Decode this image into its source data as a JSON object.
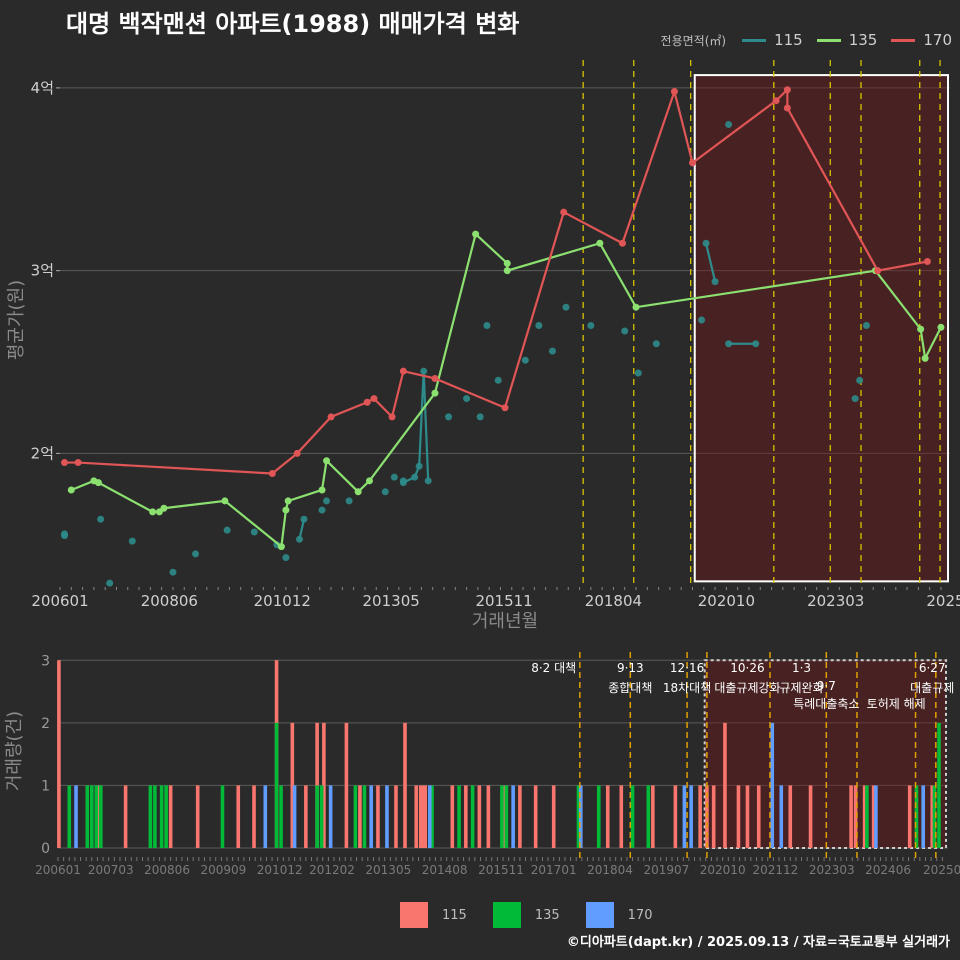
{
  "title": "대명 백작맨션 아파트(1988) 매매가격 변화",
  "legend": {
    "title": "전용면적(㎡)",
    "items": [
      {
        "label": "115",
        "color": "#2e8b8b"
      },
      {
        "label": "135",
        "color": "#8be070"
      },
      {
        "label": "170",
        "color": "#e05555"
      }
    ]
  },
  "bar_legend": [
    {
      "label": "115",
      "color": "#f8766d"
    },
    {
      "label": "135",
      "color": "#00ba38"
    },
    {
      "label": "170",
      "color": "#619cff"
    }
  ],
  "credit": "©디아파트(dapt.kr) / 2025.09.13 / 자료=국토교통부 실거래가",
  "chart_data": [
    {
      "type": "line",
      "title": "대명 백작맨션 아파트(1988) 매매가격 변화",
      "xlabel": "거래년월",
      "ylabel": "평균가(원)",
      "x_tick_labels": [
        "200601",
        "200806",
        "201012",
        "201305",
        "201511",
        "201804",
        "202010",
        "202303",
        "2025"
      ],
      "y_tick_labels": [
        "2억",
        "3억",
        "4억"
      ],
      "y_ticks": [
        2,
        3,
        4
      ],
      "xlim": [
        2006.0,
        2025.7
      ],
      "ylim": [
        1.28,
        4.18
      ],
      "y_unit": "억",
      "series": [
        {
          "name": "115",
          "color": "#2e8b8b",
          "points": [
            [
              2006.1,
              1.56
            ],
            [
              2006.1,
              1.55
            ],
            [
              2006.9,
              1.64
            ],
            [
              2007.1,
              1.29
            ],
            [
              2007.6,
              1.52
            ],
            [
              2008.5,
              1.35
            ],
            [
              2009.0,
              1.45
            ],
            [
              2009.7,
              1.58
            ],
            [
              2010.3,
              1.57
            ],
            [
              2010.8,
              1.5
            ],
            [
              2011.0,
              1.43
            ],
            [
              2011.3,
              1.53
            ],
            [
              2011.4,
              1.64
            ],
            [
              2011.8,
              1.69
            ],
            [
              2011.9,
              1.74
            ],
            [
              2012.4,
              1.74
            ],
            [
              2013.2,
              1.79
            ],
            [
              2013.4,
              1.87
            ],
            [
              2013.6,
              1.85
            ],
            [
              2013.6,
              1.84
            ],
            [
              2013.85,
              1.87
            ],
            [
              2013.95,
              1.93
            ],
            [
              2014.05,
              2.45
            ],
            [
              2014.15,
              1.85
            ],
            [
              2014.6,
              2.2
            ],
            [
              2015.0,
              2.3
            ],
            [
              2015.3,
              2.2
            ],
            [
              2015.45,
              2.7
            ],
            [
              2015.7,
              2.4
            ],
            [
              2016.3,
              2.51
            ],
            [
              2016.6,
              2.7
            ],
            [
              2016.9,
              2.56
            ],
            [
              2017.2,
              2.8
            ],
            [
              2017.75,
              2.7
            ],
            [
              2018.5,
              2.67
            ],
            [
              2018.8,
              2.44
            ],
            [
              2019.2,
              2.6
            ],
            [
              2020.2,
              2.73
            ],
            [
              2020.3,
              3.15
            ],
            [
              2020.5,
              2.94
            ],
            [
              2020.8,
              3.8
            ],
            [
              2020.8,
              2.6
            ],
            [
              2021.4,
              2.6
            ],
            [
              2023.6,
              2.3
            ],
            [
              2023.7,
              2.4
            ],
            [
              2023.85,
              2.7
            ]
          ]
        },
        {
          "name": "135",
          "color": "#8be070",
          "points": [
            [
              2006.25,
              1.8
            ],
            [
              2006.75,
              1.85
            ],
            [
              2006.85,
              1.84
            ],
            [
              2008.05,
              1.68
            ],
            [
              2008.2,
              1.68
            ],
            [
              2008.3,
              1.7
            ],
            [
              2009.65,
              1.74
            ],
            [
              2010.9,
              1.49
            ],
            [
              2011.0,
              1.69
            ],
            [
              2011.05,
              1.74
            ],
            [
              2011.8,
              1.8
            ],
            [
              2011.9,
              1.96
            ],
            [
              2012.6,
              1.79
            ],
            [
              2012.85,
              1.85
            ],
            [
              2014.3,
              2.33
            ],
            [
              2015.2,
              3.2
            ],
            [
              2015.9,
              3.04
            ],
            [
              2015.9,
              3.0
            ],
            [
              2017.95,
              3.15
            ],
            [
              2018.75,
              2.8
            ],
            [
              2024.05,
              3.0
            ],
            [
              2025.05,
              2.68
            ],
            [
              2025.15,
              2.52
            ],
            [
              2025.5,
              2.69
            ]
          ]
        },
        {
          "name": "170",
          "color": "#e05555",
          "points": [
            [
              2006.1,
              1.95
            ],
            [
              2006.4,
              1.95
            ],
            [
              2010.7,
              1.89
            ],
            [
              2011.25,
              2.0
            ],
            [
              2012.0,
              2.2
            ],
            [
              2012.8,
              2.28
            ],
            [
              2012.95,
              2.3
            ],
            [
              2013.35,
              2.2
            ],
            [
              2013.6,
              2.45
            ],
            [
              2014.3,
              2.41
            ],
            [
              2015.85,
              2.25
            ],
            [
              2017.15,
              3.32
            ],
            [
              2018.45,
              3.15
            ],
            [
              2019.6,
              3.98
            ],
            [
              2020.0,
              3.59
            ],
            [
              2021.85,
              3.93
            ],
            [
              2022.1,
              3.99
            ],
            [
              2022.1,
              3.89
            ],
            [
              2024.1,
              3.0
            ],
            [
              2025.2,
              3.05
            ]
          ]
        }
      ],
      "policy_lines": [
        2017.58,
        2018.7,
        2019.96,
        2021.8,
        2023.05,
        2023.73,
        2025.03,
        2025.48
      ],
      "highlight_range": [
        2020.05,
        2025.7
      ]
    },
    {
      "type": "bar",
      "ylabel": "거래량(건)",
      "x_tick_labels": [
        "200601",
        "200703",
        "200806",
        "200909",
        "201012",
        "201202",
        "201305",
        "201408",
        "201511",
        "201701",
        "201804",
        "201907",
        "202010",
        "202112",
        "202303",
        "202406",
        "20250"
      ],
      "y_tick_labels": [
        "0",
        "1",
        "2",
        "3"
      ],
      "y_ticks": [
        0,
        1,
        2,
        3
      ],
      "xlim": [
        2006.0,
        2025.75
      ],
      "ylim": [
        0,
        3.1
      ],
      "series": [
        {
          "name": "115",
          "color": "#f8766d",
          "points": [
            [
              2006.02,
              3
            ],
            [
              2006.9,
              1
            ],
            [
              2007.5,
              1
            ],
            [
              2008.5,
              1
            ],
            [
              2009.1,
              1
            ],
            [
              2010.0,
              1
            ],
            [
              2010.35,
              1
            ],
            [
              2010.85,
              3
            ],
            [
              2011.2,
              2
            ],
            [
              2011.5,
              1
            ],
            [
              2011.75,
              2
            ],
            [
              2011.9,
              2
            ],
            [
              2012.4,
              2
            ],
            [
              2012.7,
              1
            ],
            [
              2013.1,
              1
            ],
            [
              2013.5,
              1
            ],
            [
              2013.7,
              2
            ],
            [
              2013.95,
              1
            ],
            [
              2014.05,
              1
            ],
            [
              2014.1,
              1
            ],
            [
              2014.15,
              1
            ],
            [
              2014.75,
              1
            ],
            [
              2015.05,
              1
            ],
            [
              2015.35,
              1
            ],
            [
              2015.55,
              1
            ],
            [
              2015.9,
              1
            ],
            [
              2016.25,
              1
            ],
            [
              2016.6,
              1
            ],
            [
              2017.0,
              1
            ],
            [
              2017.6,
              1
            ],
            [
              2018.2,
              1
            ],
            [
              2018.5,
              1
            ],
            [
              2019.2,
              1
            ],
            [
              2019.7,
              1
            ],
            [
              2020.25,
              1
            ],
            [
              2020.4,
              1
            ],
            [
              2020.55,
              1
            ],
            [
              2020.8,
              2
            ],
            [
              2021.1,
              1
            ],
            [
              2021.3,
              1
            ],
            [
              2021.55,
              1
            ],
            [
              2022.25,
              1
            ],
            [
              2022.7,
              1
            ],
            [
              2023.6,
              1
            ],
            [
              2023.7,
              1
            ],
            [
              2023.9,
              1
            ],
            [
              2024.1,
              1
            ],
            [
              2024.9,
              1
            ],
            [
              2025.4,
              1
            ]
          ]
        },
        {
          "name": "135",
          "color": "#00ba38",
          "points": [
            [
              2006.25,
              1
            ],
            [
              2006.65,
              1
            ],
            [
              2006.75,
              1
            ],
            [
              2006.85,
              1
            ],
            [
              2006.95,
              1
            ],
            [
              2008.05,
              1
            ],
            [
              2008.15,
              1
            ],
            [
              2008.3,
              1
            ],
            [
              2008.4,
              1
            ],
            [
              2009.65,
              1
            ],
            [
              2010.85,
              2
            ],
            [
              2010.95,
              1
            ],
            [
              2011.75,
              1
            ],
            [
              2011.85,
              1
            ],
            [
              2012.6,
              1
            ],
            [
              2012.8,
              1
            ],
            [
              2014.3,
              1
            ],
            [
              2014.9,
              1
            ],
            [
              2015.2,
              1
            ],
            [
              2015.85,
              1
            ],
            [
              2015.95,
              1
            ],
            [
              2017.55,
              1
            ],
            [
              2018.0,
              1
            ],
            [
              2018.75,
              1
            ],
            [
              2019.1,
              1
            ],
            [
              2023.95,
              1
            ],
            [
              2025.05,
              1
            ],
            [
              2025.2,
              1
            ],
            [
              2025.45,
              1
            ],
            [
              2025.55,
              2
            ]
          ]
        },
        {
          "name": "170",
          "color": "#619cff",
          "points": [
            [
              2006.4,
              1
            ],
            [
              2010.6,
              1
            ],
            [
              2011.25,
              1
            ],
            [
              2012.05,
              1
            ],
            [
              2012.95,
              1
            ],
            [
              2013.3,
              1
            ],
            [
              2014.25,
              1
            ],
            [
              2016.1,
              1
            ],
            [
              2017.6,
              1
            ],
            [
              2019.9,
              1
            ],
            [
              2020.05,
              1
            ],
            [
              2021.85,
              2
            ],
            [
              2022.05,
              1
            ],
            [
              2024.15,
              1
            ],
            [
              2025.2,
              1
            ]
          ]
        }
      ],
      "policy_lines": [
        2017.58,
        2018.7,
        2019.96,
        2020.4,
        2021.8,
        2023.05,
        2023.73,
        2025.03,
        2025.48
      ],
      "highlight_range": [
        2020.35,
        2025.75
      ],
      "annotations": [
        {
          "x": 2017.0,
          "line": 0,
          "text": "8·2 대책"
        },
        {
          "x": 2018.7,
          "line": 0,
          "text": "9·13"
        },
        {
          "x": 2018.7,
          "line": 1,
          "text": "종합대책"
        },
        {
          "x": 2019.96,
          "line": 0,
          "text": "12·16"
        },
        {
          "x": 2019.96,
          "line": 1,
          "text": "18차대책"
        },
        {
          "x": 2021.3,
          "line": 0,
          "text": "10·26"
        },
        {
          "x": 2021.3,
          "line": 1,
          "text": "대출규제강화"
        },
        {
          "x": 2022.5,
          "line": 0,
          "text": "1·3"
        },
        {
          "x": 2022.5,
          "line": 1,
          "text": "규제완화"
        },
        {
          "x": 2023.05,
          "line": 2,
          "text": "9·7"
        },
        {
          "x": 2023.05,
          "line": 3,
          "text": "특례대출축소"
        },
        {
          "x": 2024.6,
          "line": 3,
          "text": "토허제 해제"
        },
        {
          "x": 2025.4,
          "line": 0,
          "text": "6·27"
        },
        {
          "x": 2025.4,
          "line": 1,
          "text": "대출규제"
        }
      ]
    }
  ]
}
